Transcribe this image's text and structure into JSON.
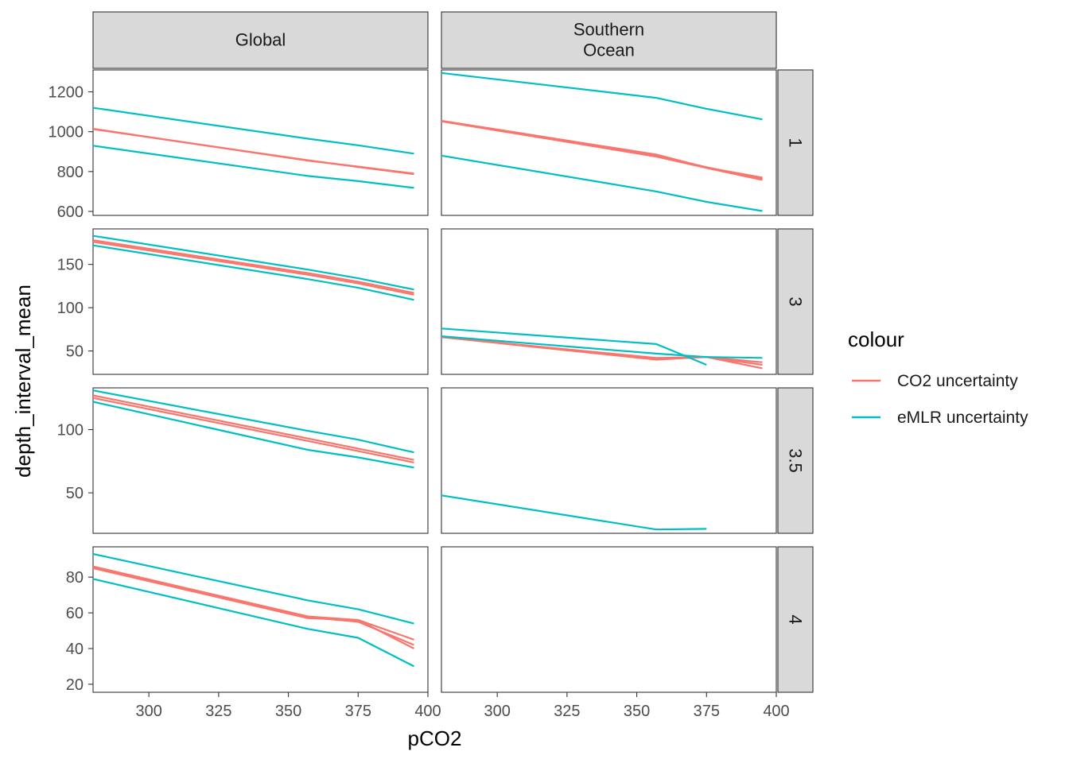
{
  "chart_data": {
    "type": "line",
    "facet_columns": [
      "Global",
      "Southern\nOcean"
    ],
    "facet_rows": [
      "1",
      "3",
      "3.5",
      "4"
    ],
    "xlabel": "pCO2",
    "ylabel": "depth_interval_mean",
    "xlim": [
      280,
      400
    ],
    "x_ticks": [
      300,
      325,
      350,
      375,
      400
    ],
    "legend": {
      "title": "colour",
      "position": "right",
      "entries": [
        {
          "name": "CO2 uncertainty",
          "color": "#F8766D"
        },
        {
          "name": "eMLR uncertainty",
          "color": "#00BFC4"
        }
      ]
    },
    "rows": [
      {
        "row": "1",
        "ylim": [
          580,
          1310
        ],
        "y_ticks": [
          600,
          800,
          1000,
          1200
        ],
        "panels": [
          {
            "column": "Global",
            "series": [
              {
                "group": "CO2 uncertainty",
                "points": [
                  [
                    280,
                    1015
                  ],
                  [
                    357,
                    855
                  ],
                  [
                    375,
                    825
                  ],
                  [
                    395,
                    790
                  ]
                ]
              },
              {
                "group": "CO2 uncertainty",
                "points": [
                  [
                    280,
                    1013
                  ],
                  [
                    357,
                    857
                  ],
                  [
                    375,
                    823
                  ],
                  [
                    395,
                    787
                  ]
                ]
              },
              {
                "group": "eMLR uncertainty",
                "points": [
                  [
                    280,
                    1120
                  ],
                  [
                    357,
                    965
                  ],
                  [
                    375,
                    932
                  ],
                  [
                    395,
                    890
                  ]
                ]
              },
              {
                "group": "eMLR uncertainty",
                "points": [
                  [
                    280,
                    930
                  ],
                  [
                    357,
                    778
                  ],
                  [
                    375,
                    752
                  ],
                  [
                    395,
                    718
                  ]
                ]
              }
            ]
          },
          {
            "column": "Southern\nOcean",
            "series": [
              {
                "group": "CO2 uncertainty",
                "points": [
                  [
                    280,
                    1055
                  ],
                  [
                    357,
                    885
                  ],
                  [
                    375,
                    820
                  ],
                  [
                    395,
                    770
                  ]
                ]
              },
              {
                "group": "CO2 uncertainty",
                "points": [
                  [
                    280,
                    1052
                  ],
                  [
                    357,
                    875
                  ],
                  [
                    375,
                    818
                  ],
                  [
                    395,
                    758
                  ]
                ]
              },
              {
                "group": "CO2 uncertainty",
                "points": [
                  [
                    280,
                    1053
                  ],
                  [
                    357,
                    880
                  ],
                  [
                    375,
                    822
                  ],
                  [
                    395,
                    764
                  ]
                ]
              },
              {
                "group": "eMLR uncertainty",
                "points": [
                  [
                    280,
                    1295
                  ],
                  [
                    357,
                    1170
                  ],
                  [
                    375,
                    1115
                  ],
                  [
                    395,
                    1062
                  ]
                ]
              },
              {
                "group": "eMLR uncertainty",
                "points": [
                  [
                    280,
                    880
                  ],
                  [
                    357,
                    700
                  ],
                  [
                    375,
                    648
                  ],
                  [
                    395,
                    602
                  ]
                ]
              }
            ]
          }
        ]
      },
      {
        "row": "3",
        "ylim": [
          23,
          191
        ],
        "y_ticks": [
          50,
          100,
          150
        ],
        "panels": [
          {
            "column": "Global",
            "series": [
              {
                "group": "CO2 uncertainty",
                "points": [
                  [
                    280,
                    178
                  ],
                  [
                    357,
                    140
                  ],
                  [
                    375,
                    130
                  ],
                  [
                    395,
                    117
                  ]
                ]
              },
              {
                "group": "CO2 uncertainty",
                "points": [
                  [
                    280,
                    176
                  ],
                  [
                    357,
                    138
                  ],
                  [
                    375,
                    128
                  ],
                  [
                    395,
                    115
                  ]
                ]
              },
              {
                "group": "eMLR uncertainty",
                "points": [
                  [
                    280,
                    183
                  ],
                  [
                    357,
                    144
                  ],
                  [
                    375,
                    134
                  ],
                  [
                    395,
                    121
                  ]
                ]
              },
              {
                "group": "eMLR uncertainty",
                "points": [
                  [
                    280,
                    172
                  ],
                  [
                    357,
                    133
                  ],
                  [
                    375,
                    123
                  ],
                  [
                    395,
                    109
                  ]
                ]
              }
            ]
          },
          {
            "column": "Southern\nOcean",
            "series": [
              {
                "group": "CO2 uncertainty",
                "points": [
                  [
                    280,
                    66
                  ],
                  [
                    357,
                    40
                  ],
                  [
                    375,
                    43
                  ],
                  [
                    395,
                    30
                  ]
                ]
              },
              {
                "group": "CO2 uncertainty",
                "points": [
                  [
                    280,
                    66
                  ],
                  [
                    357,
                    41
                  ],
                  [
                    375,
                    43
                  ],
                  [
                    395,
                    34
                  ]
                ]
              },
              {
                "group": "CO2 uncertainty",
                "points": [
                  [
                    280,
                    66
                  ],
                  [
                    357,
                    42
                  ],
                  [
                    375,
                    43
                  ],
                  [
                    395,
                    37
                  ]
                ]
              },
              {
                "group": "eMLR uncertainty",
                "points": [
                  [
                    280,
                    76
                  ],
                  [
                    357,
                    58
                  ],
                  [
                    375,
                    34
                  ]
                ]
              },
              {
                "group": "eMLR uncertainty",
                "points": [
                  [
                    280,
                    67
                  ],
                  [
                    357,
                    47
                  ],
                  [
                    375,
                    43
                  ],
                  [
                    395,
                    42
                  ]
                ]
              }
            ]
          }
        ]
      },
      {
        "row": "3.5",
        "ylim": [
          18,
          133
        ],
        "y_ticks": [
          50,
          100
        ],
        "panels": [
          {
            "column": "Global",
            "series": [
              {
                "group": "CO2 uncertainty",
                "points": [
                  [
                    280,
                    127
                  ],
                  [
                    357,
                    93
                  ],
                  [
                    375,
                    85
                  ],
                  [
                    395,
                    76
                  ]
                ]
              },
              {
                "group": "CO2 uncertainty",
                "points": [
                  [
                    280,
                    125
                  ],
                  [
                    357,
                    91
                  ],
                  [
                    375,
                    83
                  ],
                  [
                    395,
                    74
                  ]
                ]
              },
              {
                "group": "eMLR uncertainty",
                "points": [
                  [
                    280,
                    131
                  ],
                  [
                    357,
                    99
                  ],
                  [
                    375,
                    92
                  ],
                  [
                    395,
                    82
                  ]
                ]
              },
              {
                "group": "eMLR uncertainty",
                "points": [
                  [
                    280,
                    122
                  ],
                  [
                    357,
                    84
                  ],
                  [
                    375,
                    78
                  ],
                  [
                    395,
                    70
                  ]
                ]
              }
            ]
          },
          {
            "column": "Southern\nOcean",
            "series": [
              {
                "group": "eMLR uncertainty",
                "points": [
                  [
                    280,
                    48
                  ],
                  [
                    357,
                    21
                  ],
                  [
                    375,
                    21.5
                  ]
                ]
              }
            ]
          }
        ]
      },
      {
        "row": "4",
        "ylim": [
          15.5,
          97
        ],
        "y_ticks": [
          20,
          40,
          60,
          80
        ],
        "panels": [
          {
            "column": "Global",
            "series": [
              {
                "group": "CO2 uncertainty",
                "points": [
                  [
                    280,
                    86
                  ],
                  [
                    357,
                    58
                  ],
                  [
                    375,
                    56
                  ],
                  [
                    395,
                    45
                  ]
                ]
              },
              {
                "group": "CO2 uncertainty",
                "points": [
                  [
                    280,
                    85.5
                  ],
                  [
                    357,
                    57.5
                  ],
                  [
                    375,
                    55
                  ],
                  [
                    395,
                    42
                  ]
                ]
              },
              {
                "group": "CO2 uncertainty",
                "points": [
                  [
                    280,
                    85
                  ],
                  [
                    357,
                    57
                  ],
                  [
                    375,
                    56
                  ],
                  [
                    395,
                    40
                  ]
                ]
              },
              {
                "group": "eMLR uncertainty",
                "points": [
                  [
                    280,
                    93
                  ],
                  [
                    357,
                    67
                  ],
                  [
                    375,
                    62
                  ],
                  [
                    395,
                    54
                  ]
                ]
              },
              {
                "group": "eMLR uncertainty",
                "points": [
                  [
                    280,
                    79
                  ],
                  [
                    357,
                    51
                  ],
                  [
                    375,
                    46
                  ],
                  [
                    395,
                    30
                  ]
                ]
              }
            ]
          },
          {
            "column": "Southern\nOcean",
            "series": []
          }
        ]
      }
    ]
  }
}
